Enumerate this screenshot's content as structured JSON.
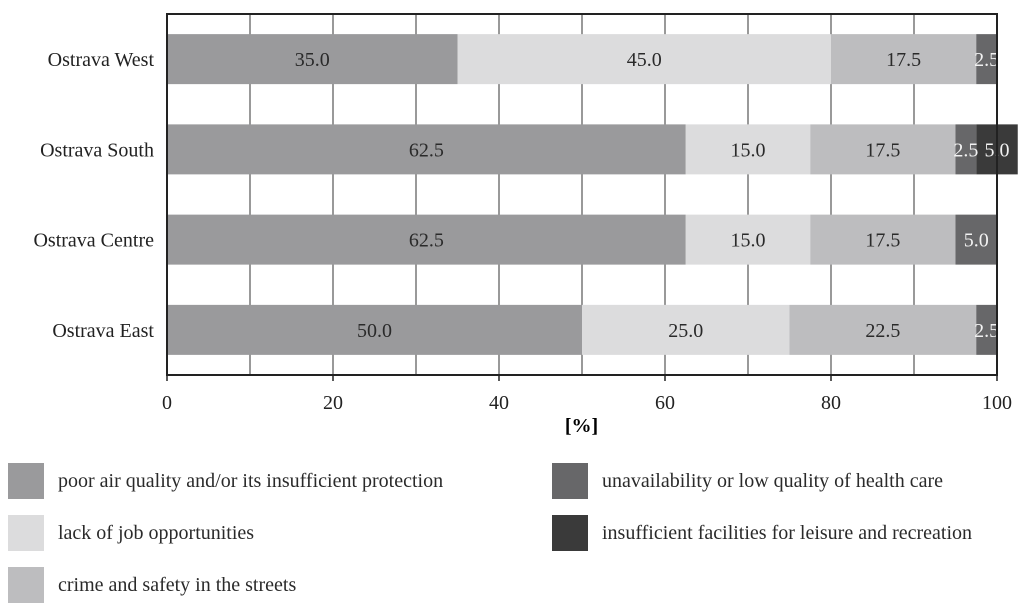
{
  "chart_data": {
    "type": "bar",
    "orientation": "horizontal",
    "stacked": true,
    "title": "",
    "xlabel": "[%]",
    "ylabel": "",
    "xlim": [
      0,
      100
    ],
    "x_ticks": [
      0,
      20,
      40,
      60,
      80,
      100
    ],
    "vertical_grid": true,
    "categories": [
      "Ostrava West",
      "Ostrava South",
      "Ostrava Centre",
      "Ostrava East"
    ],
    "series": [
      {
        "name": "poor air quality and/or its insufficient protection",
        "color": "#9a9a9c",
        "values": [
          35.0,
          62.5,
          62.5,
          50.0
        ]
      },
      {
        "name": "lack of job opportunities",
        "color": "#dcdcdd",
        "values": [
          45.0,
          15.0,
          15.0,
          25.0
        ]
      },
      {
        "name": "crime and safety in the streets",
        "color": "#bdbdbf",
        "values": [
          17.5,
          17.5,
          17.5,
          22.5
        ]
      },
      {
        "name": "unavailability or low quality of health care",
        "color": "#676769",
        "values": [
          2.5,
          2.5,
          5.0,
          2.5
        ]
      },
      {
        "name": "insufficient facilities for leisure and recreation",
        "color": "#3a3a3a",
        "values": [
          0,
          5.0,
          0,
          0
        ]
      }
    ],
    "data_labels": [
      [
        "35.0",
        "45.0",
        "17.5",
        "2.5",
        ""
      ],
      [
        "62.5",
        "15.0",
        "17.5",
        "2.5",
        "5.0"
      ],
      [
        "62.5",
        "15.0",
        "17.5",
        "5.0",
        ""
      ],
      [
        "50.0",
        "25.0",
        "22.5",
        "2.5",
        ""
      ]
    ],
    "legend_position": "bottom"
  }
}
